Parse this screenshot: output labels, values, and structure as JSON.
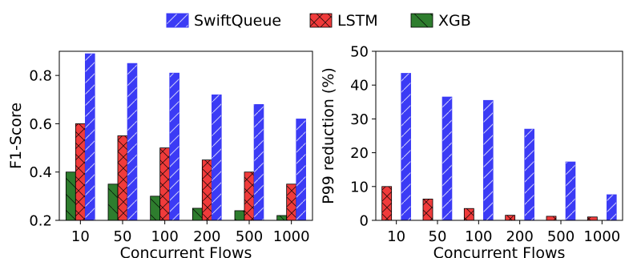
{
  "legend": {
    "placement": "top-center",
    "items": [
      {
        "label": "SwiftQueue",
        "color": "#3b3bf5",
        "hatch": "diagonal"
      },
      {
        "label": "LSTM",
        "color": "#f03b3b",
        "hatch": "cross-diagonal"
      },
      {
        "label": "XGB",
        "color": "#2e7d2e",
        "hatch": "diagonal-back"
      }
    ]
  },
  "chart_data": [
    {
      "type": "bar",
      "xlabel": "Concurrent Flows",
      "ylabel": "F1-Score",
      "ylim": [
        0.2,
        0.9
      ],
      "yticks": [
        0.2,
        0.4,
        0.6,
        0.8
      ],
      "ytick_labels": [
        "0.2",
        "0.4",
        "0.6",
        "0.8"
      ],
      "categories": [
        "10",
        "50",
        "100",
        "200",
        "500",
        "1000"
      ],
      "series": [
        {
          "name": "XGB",
          "values": [
            0.4,
            0.35,
            0.3,
            0.25,
            0.24,
            0.22
          ]
        },
        {
          "name": "LSTM",
          "values": [
            0.6,
            0.55,
            0.5,
            0.45,
            0.4,
            0.35
          ]
        },
        {
          "name": "SwiftQueue",
          "values": [
            0.89,
            0.85,
            0.81,
            0.72,
            0.68,
            0.62
          ]
        }
      ]
    },
    {
      "type": "bar",
      "xlabel": "Concurrent Flows",
      "ylabel": "P99 reduction (%)",
      "ylim": [
        0,
        50
      ],
      "yticks": [
        0,
        10,
        20,
        30,
        40,
        50
      ],
      "ytick_labels": [
        "0",
        "10",
        "20",
        "30",
        "40",
        "50"
      ],
      "categories": [
        "10",
        "50",
        "100",
        "200",
        "500",
        "1000"
      ],
      "series": [
        {
          "name": "LSTM",
          "values": [
            10.0,
            6.3,
            3.5,
            1.5,
            1.2,
            1.0
          ]
        },
        {
          "name": "SwiftQueue",
          "values": [
            43.5,
            36.5,
            35.5,
            27.0,
            17.3,
            7.6
          ]
        }
      ]
    }
  ]
}
